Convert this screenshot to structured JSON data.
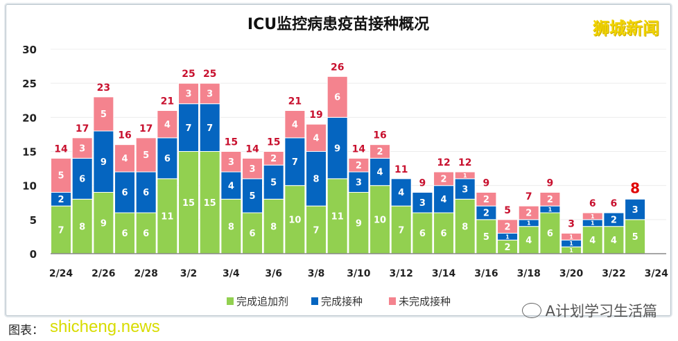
{
  "chart_data": {
    "type": "bar",
    "stacked": true,
    "title": "ICU监控病患疫苗接种概况",
    "categories": [
      "2/24",
      "2/25",
      "2/26",
      "2/27",
      "2/28",
      "3/1",
      "3/2",
      "3/3",
      "3/4",
      "3/5",
      "3/6",
      "3/7",
      "3/8",
      "3/9",
      "3/10",
      "3/11",
      "3/12",
      "3/13",
      "3/14",
      "3/15",
      "3/16",
      "3/17",
      "3/18",
      "3/19",
      "3/20",
      "3/21",
      "3/22",
      "3/23"
    ],
    "x_tick_labels": [
      "2/24",
      "2/26",
      "2/28",
      "3/2",
      "3/4",
      "3/6",
      "3/8",
      "3/10",
      "3/12",
      "3/14",
      "3/16",
      "3/18",
      "3/20",
      "3/22",
      "3/24"
    ],
    "y_ticks": [
      0,
      5,
      10,
      15,
      20,
      25,
      30
    ],
    "ylim": [
      0,
      30
    ],
    "grid": true,
    "legend_position": "bottom",
    "series": [
      {
        "name": "完成追加剂",
        "color": "#92d050",
        "values": [
          7,
          8,
          9,
          6,
          6,
          11,
          15,
          15,
          8,
          6,
          8,
          10,
          7,
          11,
          9,
          10,
          7,
          6,
          6,
          8,
          5,
          2,
          4,
          6,
          1,
          4,
          4,
          5
        ]
      },
      {
        "name": "完成接种",
        "color": "#0565c0",
        "values": [
          2,
          6,
          9,
          6,
          6,
          6,
          7,
          7,
          4,
          5,
          5,
          7,
          8,
          9,
          3,
          4,
          4,
          3,
          4,
          3,
          2,
          1,
          1,
          1,
          1,
          1,
          2,
          3
        ]
      },
      {
        "name": "未完成接种",
        "color": "#f4838e",
        "values": [
          5,
          3,
          5,
          4,
          5,
          4,
          3,
          3,
          3,
          3,
          2,
          4,
          4,
          6,
          2,
          2,
          0,
          0,
          2,
          1,
          2,
          2,
          2,
          2,
          1,
          1,
          0,
          0
        ]
      }
    ],
    "totals": [
      14,
      17,
      23,
      16,
      17,
      21,
      25,
      25,
      15,
      14,
      15,
      21,
      19,
      26,
      14,
      16,
      11,
      9,
      12,
      12,
      9,
      5,
      7,
      9,
      3,
      6,
      6,
      8
    ],
    "total_label_color": "#c8102e"
  },
  "watermarks": {
    "top_right": "狮城新闻",
    "bottom_left": "shicheng.news",
    "wechat": "A计划学习生活篇"
  },
  "caption": "图表："
}
